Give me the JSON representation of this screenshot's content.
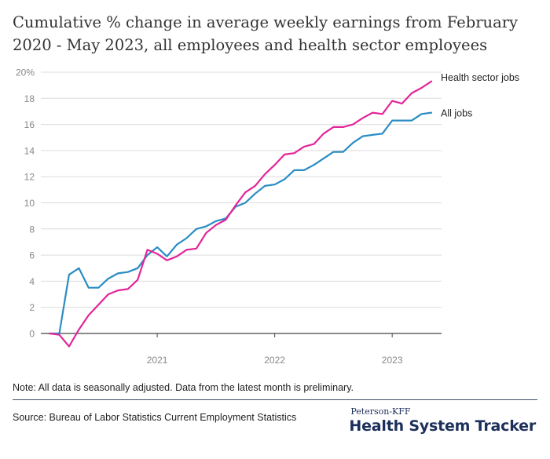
{
  "title": "Cumulative % change in average weekly earnings from February 2020 - May 2023, all employees and health sector employees",
  "note": "Note: All data is seasonally adjusted. Data from the latest month is preliminary.",
  "source": "Source: Bureau of Labor Statistics Current Employment Statistics",
  "brand": {
    "top": "Peterson-KFF",
    "main": "Health System Tracker"
  },
  "colors": {
    "all_jobs": "#2a8cc4",
    "health": "#e2259a",
    "grid": "#dcdcdc",
    "axis_text": "#888888"
  },
  "chart_data": {
    "type": "line",
    "title": "Cumulative % change in average weekly earnings from February 2020 - May 2023, all employees and health sector employees",
    "xlabel": "",
    "ylabel": "",
    "ylim": [
      0,
      20
    ],
    "xlim": [
      "2020-02",
      "2023-05"
    ],
    "yticks": [
      0,
      2,
      4,
      6,
      8,
      10,
      12,
      14,
      16,
      18,
      20
    ],
    "ytick_labels": [
      "0",
      "2",
      "4",
      "6",
      "8",
      "10",
      "12",
      "14",
      "16",
      "18",
      "20%"
    ],
    "xtick_labels": [
      {
        "label": "2021",
        "date": "2021-01"
      },
      {
        "label": "2022",
        "date": "2022-01"
      },
      {
        "label": "2023",
        "date": "2023-01"
      }
    ],
    "grid": "horizontal",
    "legend": "labels at line ends (right)",
    "x": [
      "2020-02",
      "2020-03",
      "2020-04",
      "2020-05",
      "2020-06",
      "2020-07",
      "2020-08",
      "2020-09",
      "2020-10",
      "2020-11",
      "2020-12",
      "2021-01",
      "2021-02",
      "2021-03",
      "2021-04",
      "2021-05",
      "2021-06",
      "2021-07",
      "2021-08",
      "2021-09",
      "2021-10",
      "2021-11",
      "2021-12",
      "2022-01",
      "2022-02",
      "2022-03",
      "2022-04",
      "2022-05",
      "2022-06",
      "2022-07",
      "2022-08",
      "2022-09",
      "2022-10",
      "2022-11",
      "2022-12",
      "2023-01",
      "2023-02",
      "2023-03",
      "2023-04",
      "2023-05"
    ],
    "series": [
      {
        "name": "Health sector jobs",
        "color": "#e2259a",
        "values": [
          0,
          -0.1,
          -1.0,
          0.3,
          1.4,
          2.2,
          3.0,
          3.3,
          3.4,
          4.1,
          6.4,
          6.1,
          5.6,
          5.9,
          6.4,
          6.5,
          7.7,
          8.3,
          8.7,
          9.8,
          10.8,
          11.3,
          12.2,
          12.9,
          13.7,
          13.8,
          14.3,
          14.5,
          15.3,
          15.8,
          15.8,
          16.0,
          16.5,
          16.9,
          16.8,
          17.8,
          17.6,
          18.4,
          18.8,
          19.3
        ]
      },
      {
        "name": "All jobs",
        "color": "#2a8cc4",
        "values": [
          0,
          0,
          4.5,
          5.0,
          3.5,
          3.5,
          4.2,
          4.6,
          4.7,
          5.0,
          6.0,
          6.6,
          5.9,
          6.8,
          7.3,
          8.0,
          8.2,
          8.6,
          8.8,
          9.7,
          10.0,
          10.7,
          11.3,
          11.4,
          11.8,
          12.5,
          12.5,
          12.9,
          13.4,
          13.9,
          13.9,
          14.6,
          15.1,
          15.2,
          15.3,
          16.3,
          16.3,
          16.3,
          16.8,
          16.9
        ]
      }
    ]
  }
}
